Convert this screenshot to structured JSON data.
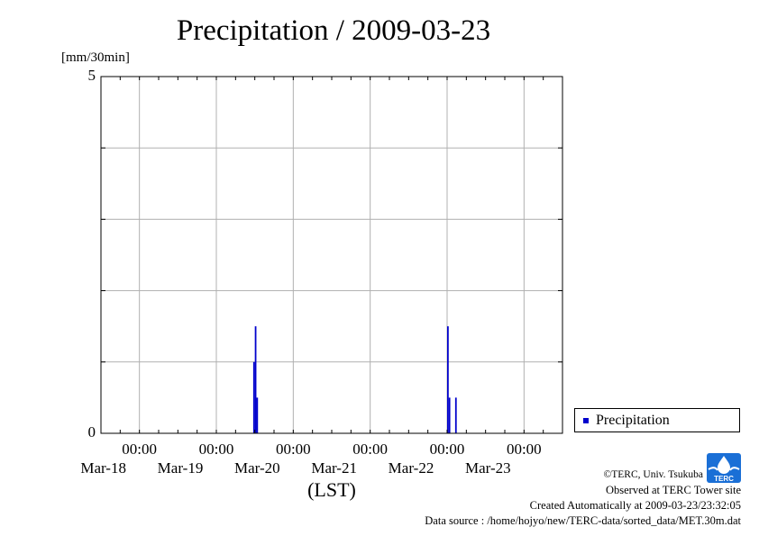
{
  "chart_data": {
    "type": "bar",
    "title": "Precipitation / 2009-03-23",
    "ylabel": "[mm/30min]",
    "xlabel": "(LST)",
    "ylim": [
      0,
      5
    ],
    "yticks": [
      0,
      5
    ],
    "xlim": [
      "2009-03-17 12:00",
      "2009-03-23 12:00"
    ],
    "xticks": [
      {
        "time": "00:00",
        "date": "Mar-18",
        "at": "2009-03-18 00:00"
      },
      {
        "time": "00:00",
        "date": "Mar-19",
        "at": "2009-03-19 00:00"
      },
      {
        "time": "00:00",
        "date": "Mar-20",
        "at": "2009-03-20 00:00"
      },
      {
        "time": "00:00",
        "date": "Mar-21",
        "at": "2009-03-21 00:00"
      },
      {
        "time": "00:00",
        "date": "Mar-22",
        "at": "2009-03-22 00:00"
      },
      {
        "time": "00:00",
        "date": "Mar-23",
        "at": "2009-03-23 00:00"
      }
    ],
    "grid": true,
    "legend_position": "right",
    "series": [
      {
        "name": "Precipitation",
        "color": "#0000cc",
        "points": [
          {
            "x": "2009-03-19 11:30",
            "y": 1.0
          },
          {
            "x": "2009-03-19 12:00",
            "y": 1.5
          },
          {
            "x": "2009-03-19 12:30",
            "y": 0.5
          },
          {
            "x": "2009-03-22 00:00",
            "y": 1.5
          },
          {
            "x": "2009-03-22 00:30",
            "y": 0.5
          },
          {
            "x": "2009-03-22 02:30",
            "y": 0.5
          }
        ]
      }
    ]
  },
  "credits": {
    "line1": "©TERC, Univ. Tsukuba",
    "line2": "Observed at TERC Tower site",
    "line3": "Created Automatically at 2009-03-23/23:32:05",
    "line4": "Data source : /home/hojyo/new/TERC-data/sorted_data/MET.30m.dat"
  },
  "logo": {
    "text": "TERC",
    "color": "#1a6fd6"
  }
}
